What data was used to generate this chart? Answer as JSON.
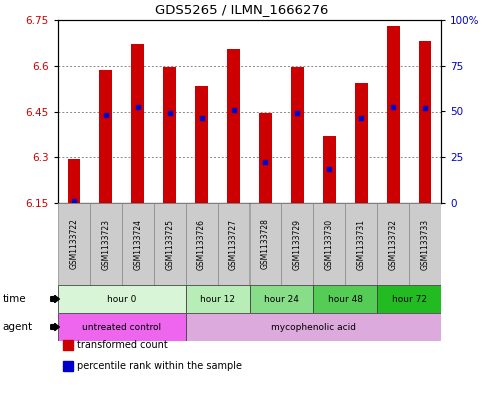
{
  "title": "GDS5265 / ILMN_1666276",
  "samples": [
    "GSM1133722",
    "GSM1133723",
    "GSM1133724",
    "GSM1133725",
    "GSM1133726",
    "GSM1133727",
    "GSM1133728",
    "GSM1133729",
    "GSM1133730",
    "GSM1133731",
    "GSM1133732",
    "GSM1133733"
  ],
  "bar_values": [
    6.295,
    6.585,
    6.67,
    6.595,
    6.535,
    6.655,
    6.445,
    6.595,
    6.37,
    6.545,
    6.73,
    6.68
  ],
  "bar_base": 6.15,
  "percentile_positions": [
    6.155,
    6.44,
    6.465,
    6.445,
    6.43,
    6.455,
    6.285,
    6.445,
    6.26,
    6.43,
    6.465,
    6.46
  ],
  "ylim_left": [
    6.15,
    6.75
  ],
  "ylim_right": [
    0,
    100
  ],
  "yticks_left": [
    6.15,
    6.3,
    6.45,
    6.6,
    6.75
  ],
  "yticks_right": [
    0,
    25,
    50,
    75,
    100
  ],
  "ytick_labels_left": [
    "6.15",
    "6.3",
    "6.45",
    "6.6",
    "6.75"
  ],
  "ytick_labels_right": [
    "0",
    "25",
    "50",
    "75",
    "100%"
  ],
  "bar_color": "#cc0000",
  "percentile_color": "#0000cc",
  "background_color": "#ffffff",
  "plot_bg_color": "#ffffff",
  "grid_color": "#888888",
  "time_groups": [
    {
      "label": "hour 0",
      "start": 0,
      "end": 3,
      "color": "#d8f5d8"
    },
    {
      "label": "hour 12",
      "start": 4,
      "end": 5,
      "color": "#b8edb8"
    },
    {
      "label": "hour 24",
      "start": 6,
      "end": 7,
      "color": "#88dd88"
    },
    {
      "label": "hour 48",
      "start": 8,
      "end": 9,
      "color": "#55cc55"
    },
    {
      "label": "hour 72",
      "start": 10,
      "end": 11,
      "color": "#22bb22"
    }
  ],
  "agent_groups": [
    {
      "label": "untreated control",
      "start": 0,
      "end": 3,
      "color": "#ee66ee"
    },
    {
      "label": "mycophenolic acid",
      "start": 4,
      "end": 11,
      "color": "#ddaadd"
    }
  ],
  "legend_items": [
    {
      "label": "transformed count",
      "color": "#cc0000"
    },
    {
      "label": "percentile rank within the sample",
      "color": "#0000cc"
    }
  ],
  "left_ytick_color": "#cc0000",
  "right_ytick_color": "#0000cc",
  "sample_bg_color": "#cccccc",
  "n_samples": 12
}
